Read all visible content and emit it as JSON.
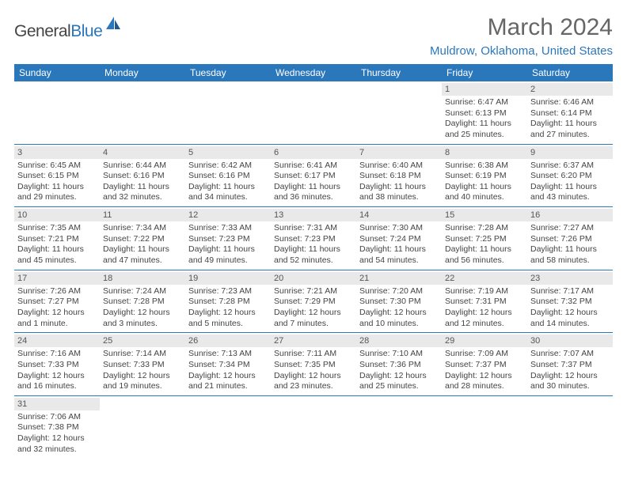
{
  "logo": {
    "part1": "General",
    "part2": "Blue"
  },
  "title": "March 2024",
  "location": "Muldrow, Oklahoma, United States",
  "colors": {
    "header_bg": "#2a77bc",
    "header_text": "#ffffff",
    "daynum_bg": "#e9e9e9",
    "border": "#2a77bc",
    "title_color": "#666666",
    "location_color": "#2a77bc"
  },
  "weekdays": [
    "Sunday",
    "Monday",
    "Tuesday",
    "Wednesday",
    "Thursday",
    "Friday",
    "Saturday"
  ],
  "leading_empty": 5,
  "days": [
    {
      "n": "1",
      "sunrise": "Sunrise: 6:47 AM",
      "sunset": "Sunset: 6:13 PM",
      "daylight": "Daylight: 11 hours and 25 minutes."
    },
    {
      "n": "2",
      "sunrise": "Sunrise: 6:46 AM",
      "sunset": "Sunset: 6:14 PM",
      "daylight": "Daylight: 11 hours and 27 minutes."
    },
    {
      "n": "3",
      "sunrise": "Sunrise: 6:45 AM",
      "sunset": "Sunset: 6:15 PM",
      "daylight": "Daylight: 11 hours and 29 minutes."
    },
    {
      "n": "4",
      "sunrise": "Sunrise: 6:44 AM",
      "sunset": "Sunset: 6:16 PM",
      "daylight": "Daylight: 11 hours and 32 minutes."
    },
    {
      "n": "5",
      "sunrise": "Sunrise: 6:42 AM",
      "sunset": "Sunset: 6:16 PM",
      "daylight": "Daylight: 11 hours and 34 minutes."
    },
    {
      "n": "6",
      "sunrise": "Sunrise: 6:41 AM",
      "sunset": "Sunset: 6:17 PM",
      "daylight": "Daylight: 11 hours and 36 minutes."
    },
    {
      "n": "7",
      "sunrise": "Sunrise: 6:40 AM",
      "sunset": "Sunset: 6:18 PM",
      "daylight": "Daylight: 11 hours and 38 minutes."
    },
    {
      "n": "8",
      "sunrise": "Sunrise: 6:38 AM",
      "sunset": "Sunset: 6:19 PM",
      "daylight": "Daylight: 11 hours and 40 minutes."
    },
    {
      "n": "9",
      "sunrise": "Sunrise: 6:37 AM",
      "sunset": "Sunset: 6:20 PM",
      "daylight": "Daylight: 11 hours and 43 minutes."
    },
    {
      "n": "10",
      "sunrise": "Sunrise: 7:35 AM",
      "sunset": "Sunset: 7:21 PM",
      "daylight": "Daylight: 11 hours and 45 minutes."
    },
    {
      "n": "11",
      "sunrise": "Sunrise: 7:34 AM",
      "sunset": "Sunset: 7:22 PM",
      "daylight": "Daylight: 11 hours and 47 minutes."
    },
    {
      "n": "12",
      "sunrise": "Sunrise: 7:33 AM",
      "sunset": "Sunset: 7:23 PM",
      "daylight": "Daylight: 11 hours and 49 minutes."
    },
    {
      "n": "13",
      "sunrise": "Sunrise: 7:31 AM",
      "sunset": "Sunset: 7:23 PM",
      "daylight": "Daylight: 11 hours and 52 minutes."
    },
    {
      "n": "14",
      "sunrise": "Sunrise: 7:30 AM",
      "sunset": "Sunset: 7:24 PM",
      "daylight": "Daylight: 11 hours and 54 minutes."
    },
    {
      "n": "15",
      "sunrise": "Sunrise: 7:28 AM",
      "sunset": "Sunset: 7:25 PM",
      "daylight": "Daylight: 11 hours and 56 minutes."
    },
    {
      "n": "16",
      "sunrise": "Sunrise: 7:27 AM",
      "sunset": "Sunset: 7:26 PM",
      "daylight": "Daylight: 11 hours and 58 minutes."
    },
    {
      "n": "17",
      "sunrise": "Sunrise: 7:26 AM",
      "sunset": "Sunset: 7:27 PM",
      "daylight": "Daylight: 12 hours and 1 minute."
    },
    {
      "n": "18",
      "sunrise": "Sunrise: 7:24 AM",
      "sunset": "Sunset: 7:28 PM",
      "daylight": "Daylight: 12 hours and 3 minutes."
    },
    {
      "n": "19",
      "sunrise": "Sunrise: 7:23 AM",
      "sunset": "Sunset: 7:28 PM",
      "daylight": "Daylight: 12 hours and 5 minutes."
    },
    {
      "n": "20",
      "sunrise": "Sunrise: 7:21 AM",
      "sunset": "Sunset: 7:29 PM",
      "daylight": "Daylight: 12 hours and 7 minutes."
    },
    {
      "n": "21",
      "sunrise": "Sunrise: 7:20 AM",
      "sunset": "Sunset: 7:30 PM",
      "daylight": "Daylight: 12 hours and 10 minutes."
    },
    {
      "n": "22",
      "sunrise": "Sunrise: 7:19 AM",
      "sunset": "Sunset: 7:31 PM",
      "daylight": "Daylight: 12 hours and 12 minutes."
    },
    {
      "n": "23",
      "sunrise": "Sunrise: 7:17 AM",
      "sunset": "Sunset: 7:32 PM",
      "daylight": "Daylight: 12 hours and 14 minutes."
    },
    {
      "n": "24",
      "sunrise": "Sunrise: 7:16 AM",
      "sunset": "Sunset: 7:33 PM",
      "daylight": "Daylight: 12 hours and 16 minutes."
    },
    {
      "n": "25",
      "sunrise": "Sunrise: 7:14 AM",
      "sunset": "Sunset: 7:33 PM",
      "daylight": "Daylight: 12 hours and 19 minutes."
    },
    {
      "n": "26",
      "sunrise": "Sunrise: 7:13 AM",
      "sunset": "Sunset: 7:34 PM",
      "daylight": "Daylight: 12 hours and 21 minutes."
    },
    {
      "n": "27",
      "sunrise": "Sunrise: 7:11 AM",
      "sunset": "Sunset: 7:35 PM",
      "daylight": "Daylight: 12 hours and 23 minutes."
    },
    {
      "n": "28",
      "sunrise": "Sunrise: 7:10 AM",
      "sunset": "Sunset: 7:36 PM",
      "daylight": "Daylight: 12 hours and 25 minutes."
    },
    {
      "n": "29",
      "sunrise": "Sunrise: 7:09 AM",
      "sunset": "Sunset: 7:37 PM",
      "daylight": "Daylight: 12 hours and 28 minutes."
    },
    {
      "n": "30",
      "sunrise": "Sunrise: 7:07 AM",
      "sunset": "Sunset: 7:37 PM",
      "daylight": "Daylight: 12 hours and 30 minutes."
    },
    {
      "n": "31",
      "sunrise": "Sunrise: 7:06 AM",
      "sunset": "Sunset: 7:38 PM",
      "daylight": "Daylight: 12 hours and 32 minutes."
    }
  ]
}
